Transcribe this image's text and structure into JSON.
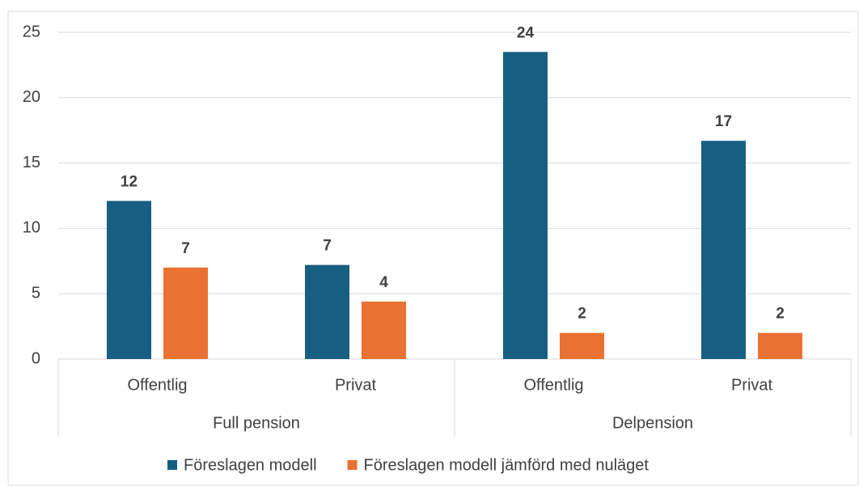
{
  "chart_data": {
    "type": "bar",
    "categories": [
      "Offentlig",
      "Privat",
      "Offentlig",
      "Privat"
    ],
    "group_labels": [
      "Full pension",
      "Delpension"
    ],
    "series": [
      {
        "name": "Föreslagen modell",
        "color": "#175f82",
        "values": [
          12.1,
          7.2,
          23.5,
          16.7
        ],
        "value_labels": [
          "12",
          "7",
          "24",
          "17"
        ]
      },
      {
        "name": "Föreslagen modell jämförd med nuläget",
        "color": "#e97132",
        "values": [
          7.0,
          4.4,
          2.0,
          2.0
        ],
        "value_labels": [
          "7",
          "4",
          "2",
          "2"
        ]
      }
    ],
    "ylim": [
      0,
      25
    ],
    "yticks": [
      0,
      5,
      10,
      15,
      20,
      25
    ],
    "grid": true,
    "legend": "bottom"
  }
}
